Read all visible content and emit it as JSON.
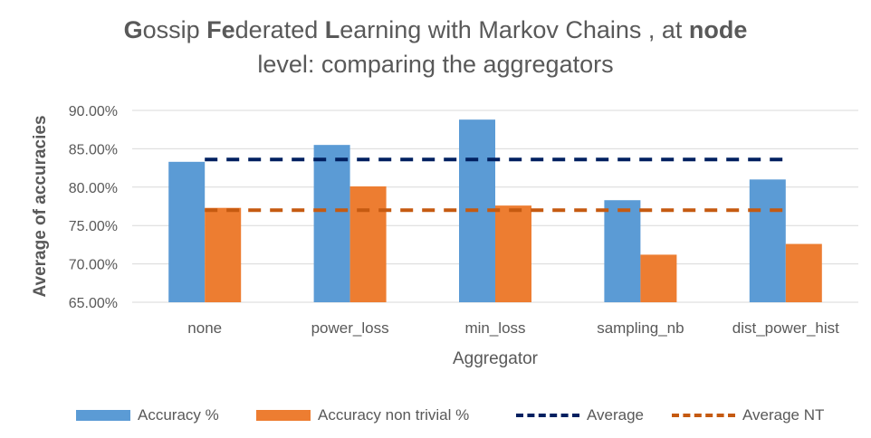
{
  "title": {
    "line1_parts": [
      {
        "text": "G",
        "bold": true
      },
      {
        "text": "ossip ",
        "bold": false
      },
      {
        "text": "Fe",
        "bold": true
      },
      {
        "text": "derated ",
        "bold": false
      },
      {
        "text": "L",
        "bold": true
      },
      {
        "text": "earning with Markov Chains , at ",
        "bold": false
      },
      {
        "text": "node",
        "bold": true
      }
    ],
    "line2": "level: comparing the aggregators"
  },
  "chart_data": {
    "type": "bar",
    "title": "Gossip Federated Learning with Markov Chains , at node level: comparing the aggregators",
    "xlabel": "Aggregator",
    "ylabel": "Average of accuracies",
    "categories": [
      "none",
      "power_loss",
      "min_loss",
      "sampling_nb",
      "dist_power_hist"
    ],
    "ylim": [
      65,
      90
    ],
    "yticks": [
      65,
      70,
      75,
      80,
      85,
      90
    ],
    "ytick_labels": [
      "65.00%",
      "70.00%",
      "75.00%",
      "80.00%",
      "85.00%",
      "90.00%"
    ],
    "grid": true,
    "legend_position": "bottom",
    "series": [
      {
        "name": "Accuracy %",
        "kind": "bar",
        "color": "#5B9BD5",
        "values": [
          83.3,
          85.5,
          88.8,
          78.3,
          81.0
        ]
      },
      {
        "name": "Accuracy non trivial %",
        "kind": "bar",
        "color": "#ED7D31",
        "values": [
          77.3,
          80.1,
          77.6,
          71.2,
          72.6
        ]
      },
      {
        "name": "Average",
        "kind": "line",
        "style": "dashed",
        "color": "#002060",
        "values": [
          83.6,
          83.6,
          83.6,
          83.6,
          83.6
        ]
      },
      {
        "name": "Average NT",
        "kind": "line",
        "style": "dashed",
        "color": "#C55A11",
        "values": [
          77.0,
          77.0,
          77.0,
          77.0,
          77.0
        ]
      }
    ]
  }
}
